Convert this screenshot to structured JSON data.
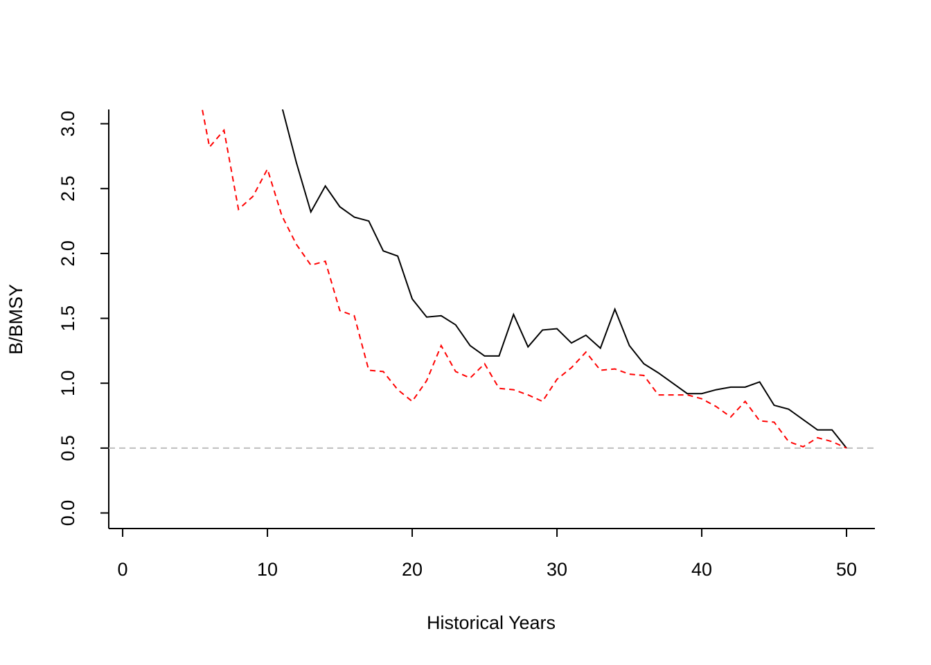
{
  "chart_data": {
    "type": "line",
    "x_label": "Historical Years",
    "y_label": "B/BMSY",
    "x": [
      1,
      2,
      3,
      4,
      5,
      6,
      7,
      8,
      9,
      10,
      11,
      12,
      13,
      14,
      15,
      16,
      17,
      18,
      19,
      20,
      21,
      22,
      23,
      24,
      25,
      26,
      27,
      28,
      29,
      30,
      31,
      32,
      33,
      34,
      35,
      36,
      37,
      38,
      39,
      40,
      41,
      42,
      43,
      44,
      45,
      46,
      47,
      48,
      49,
      50
    ],
    "series": [
      {
        "color": "#000000",
        "dash": false,
        "values": [
          null,
          null,
          null,
          null,
          null,
          null,
          null,
          null,
          null,
          null,
          3.13,
          2.7,
          2.32,
          2.52,
          2.36,
          2.28,
          2.25,
          2.02,
          1.98,
          1.65,
          1.51,
          1.52,
          1.45,
          1.29,
          1.21,
          1.21,
          1.53,
          1.28,
          1.41,
          1.42,
          1.31,
          1.37,
          1.27,
          1.57,
          1.29,
          1.15,
          1.08,
          1.0,
          0.92,
          0.92,
          0.95,
          0.97,
          0.97,
          1.01,
          0.83,
          0.8,
          0.72,
          0.64,
          0.64,
          0.5
        ]
      },
      {
        "color": "#ff0000",
        "dash": true,
        "values": [
          null,
          null,
          null,
          null,
          3.4,
          2.82,
          2.95,
          2.34,
          2.44,
          2.65,
          2.29,
          2.07,
          1.91,
          1.94,
          1.56,
          1.52,
          1.1,
          1.09,
          0.95,
          0.86,
          1.02,
          1.29,
          1.09,
          1.04,
          1.15,
          0.96,
          0.95,
          0.91,
          0.86,
          1.03,
          1.12,
          1.24,
          1.1,
          1.11,
          1.07,
          1.06,
          0.91,
          0.91,
          0.91,
          0.88,
          0.82,
          0.74,
          0.86,
          0.71,
          0.7,
          0.55,
          0.51,
          0.58,
          0.55,
          0.5
        ]
      }
    ],
    "reference_line": {
      "value": 0.5,
      "color": "#bebebe"
    },
    "xlim": [
      -0.96,
      51.96
    ],
    "ylim": [
      -0.12,
      3.11
    ],
    "xticks": [
      0,
      10,
      20,
      30,
      40,
      50
    ],
    "yticks": [
      {
        "value": 0,
        "label": "0.0"
      },
      0.5,
      {
        "value": 1,
        "label": "1.0"
      },
      1.5,
      {
        "value": 2,
        "label": "2.0"
      },
      2.5,
      {
        "value": 3,
        "label": "3.0"
      }
    ]
  }
}
